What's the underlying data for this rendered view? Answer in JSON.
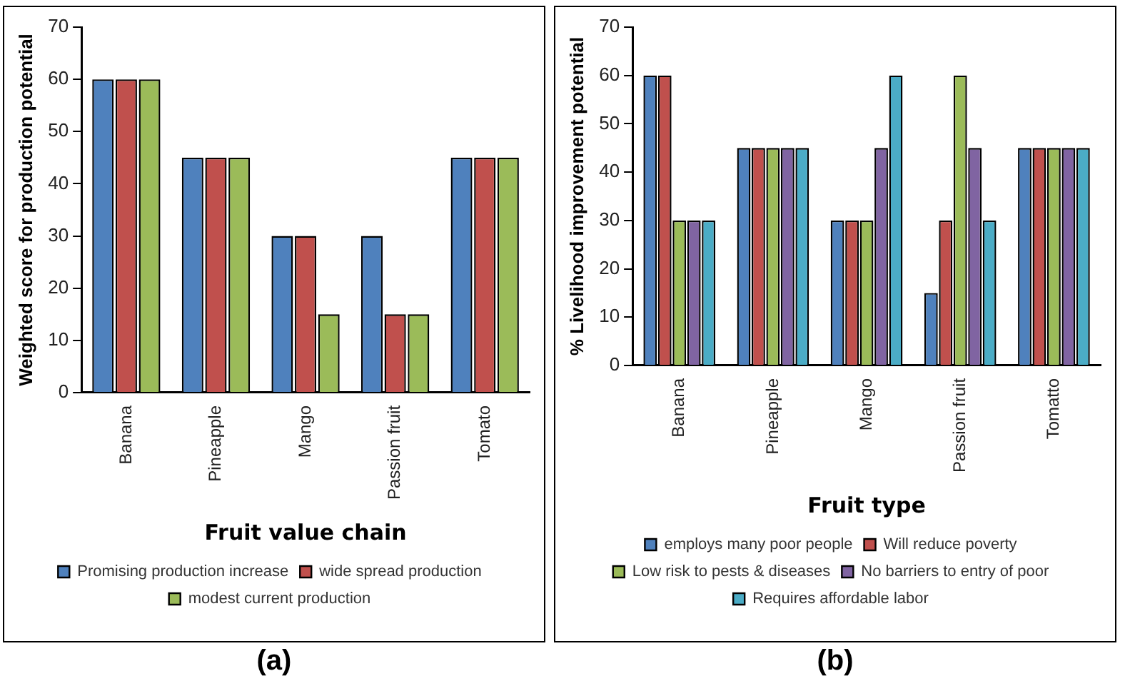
{
  "chart_data": [
    {
      "type": "bar",
      "xlabel": "Fruit value chain",
      "ylabel": "Weighted score for production potential",
      "categories": [
        "Banana",
        "Pineapple",
        "Mango",
        "Passion fruit",
        "Tomato"
      ],
      "series": [
        {
          "name": "Promising production increase",
          "color": "#4f81bd",
          "values": [
            60,
            45,
            30,
            30,
            45
          ]
        },
        {
          "name": "wide spread production",
          "color": "#c0504d",
          "values": [
            60,
            45,
            30,
            15,
            45
          ]
        },
        {
          "name": "modest current production",
          "color": "#9bbb59",
          "values": [
            60,
            45,
            15,
            15,
            45
          ]
        }
      ],
      "ylim": [
        0,
        70
      ],
      "yticks": [
        0,
        10,
        20,
        30,
        40,
        50,
        60,
        70
      ],
      "grid": false,
      "legend": "bottom",
      "annotations": [
        "(a)"
      ]
    },
    {
      "type": "bar",
      "xlabel": "Fruit type",
      "ylabel": "% Livelihood improvement potential",
      "categories": [
        "Banana",
        "Pineapple",
        "Mango",
        "Passion fruit",
        "Tomatto"
      ],
      "series": [
        {
          "name": "employs many poor people",
          "color": "#4f81bd",
          "values": [
            60,
            45,
            30,
            15,
            45
          ]
        },
        {
          "name": "Will reduce poverty",
          "color": "#c0504d",
          "values": [
            60,
            45,
            30,
            30,
            45
          ]
        },
        {
          "name": "Low risk to pests & diseases",
          "color": "#9bbb59",
          "values": [
            30,
            45,
            30,
            60,
            45
          ]
        },
        {
          "name": "No barriers to entry of poor",
          "color": "#8064a2",
          "values": [
            30,
            45,
            45,
            45,
            45
          ]
        },
        {
          "name": "Requires affordable labor",
          "color": "#4bacc6",
          "values": [
            30,
            45,
            60,
            30,
            45
          ]
        }
      ],
      "ylim": [
        0,
        70
      ],
      "yticks": [
        0,
        10,
        20,
        30,
        40,
        50,
        60,
        70
      ],
      "grid": false,
      "legend": "bottom",
      "annotations": [
        "(b)"
      ]
    }
  ]
}
